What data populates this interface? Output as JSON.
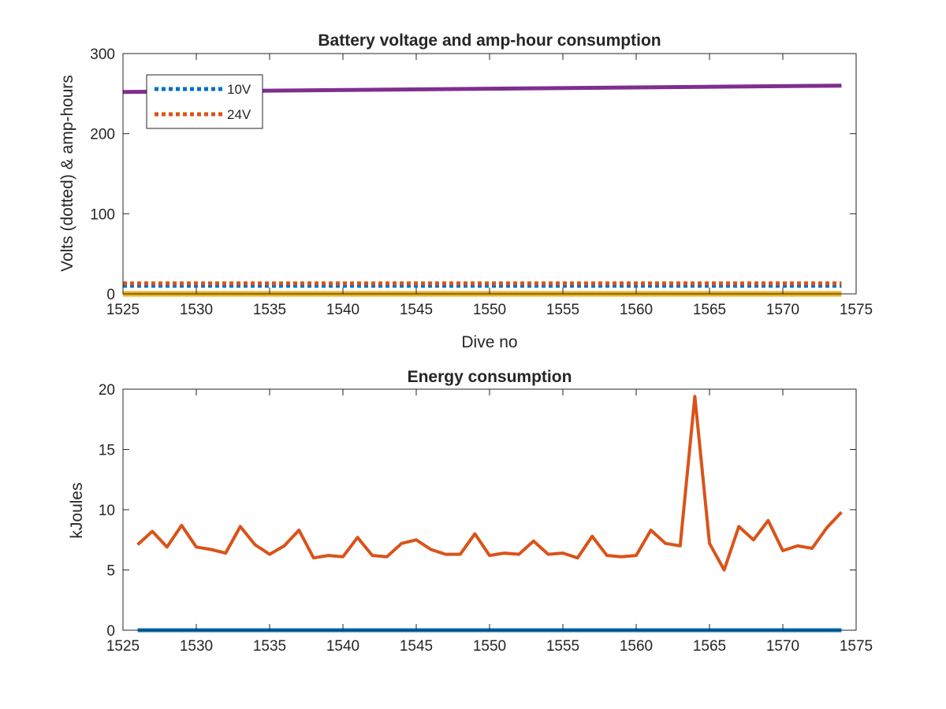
{
  "chart_data": [
    {
      "type": "line",
      "title": "Battery voltage and amp-hour consumption",
      "xlabel": "Dive no",
      "ylabel": "Volts (dotted) & amp-hours",
      "xlim": [
        1525,
        1575
      ],
      "ylim": [
        0,
        300
      ],
      "xticks": [
        1525,
        1530,
        1535,
        1540,
        1545,
        1550,
        1555,
        1560,
        1565,
        1570,
        1575
      ],
      "yticks": [
        0,
        100,
        200,
        300
      ],
      "grid": false,
      "legend_position": "top-left",
      "series": [
        {
          "name": "10V",
          "style": "dotted",
          "color": "#0072BD",
          "x": [
            1525,
            1574
          ],
          "y": [
            10,
            10
          ]
        },
        {
          "name": "24V",
          "style": "dotted",
          "color": "#D95319",
          "x": [
            1525,
            1574
          ],
          "y": [
            13,
            13
          ]
        },
        {
          "name": "",
          "style": "solid",
          "color": "#EDB120",
          "x": [
            1525,
            1574
          ],
          "y": [
            0,
            0
          ]
        },
        {
          "name": "",
          "style": "solid",
          "color": "#7E2F8E",
          "x": [
            1525,
            1574
          ],
          "y": [
            252,
            260
          ]
        }
      ]
    },
    {
      "type": "line",
      "title": "Energy consumption",
      "xlabel": "",
      "ylabel": "kJoules",
      "xlim": [
        1525,
        1575
      ],
      "ylim": [
        0,
        20
      ],
      "xticks": [
        1525,
        1530,
        1535,
        1540,
        1545,
        1550,
        1555,
        1560,
        1565,
        1570,
        1575
      ],
      "yticks": [
        0,
        5,
        10,
        15,
        20
      ],
      "grid": false,
      "series": [
        {
          "name": "",
          "style": "solid",
          "color": "#0072BD",
          "x": [
            1526,
            1574
          ],
          "y": [
            0,
            0
          ]
        },
        {
          "name": "",
          "style": "solid",
          "color": "#D95319",
          "x": [
            1526,
            1527,
            1528,
            1529,
            1530,
            1531,
            1532,
            1533,
            1534,
            1535,
            1536,
            1537,
            1538,
            1539,
            1540,
            1541,
            1542,
            1543,
            1544,
            1545,
            1546,
            1547,
            1548,
            1549,
            1550,
            1551,
            1552,
            1553,
            1554,
            1555,
            1556,
            1557,
            1558,
            1559,
            1560,
            1561,
            1562,
            1563,
            1564,
            1565,
            1566,
            1567,
            1568,
            1569,
            1570,
            1571,
            1572,
            1573,
            1574
          ],
          "y": [
            7.1,
            8.2,
            6.9,
            8.7,
            6.9,
            6.7,
            6.4,
            8.6,
            7.1,
            6.3,
            7.0,
            8.3,
            6.0,
            6.2,
            6.1,
            7.7,
            6.2,
            6.1,
            7.2,
            7.5,
            6.7,
            6.3,
            6.3,
            8.0,
            6.2,
            6.4,
            6.3,
            7.4,
            6.3,
            6.4,
            6.0,
            7.8,
            6.2,
            6.1,
            6.2,
            8.3,
            7.2,
            7.0,
            19.4,
            7.2,
            5.0,
            8.6,
            7.5,
            9.1,
            6.6,
            7.0,
            6.8,
            8.5,
            9.8
          ]
        }
      ]
    }
  ]
}
